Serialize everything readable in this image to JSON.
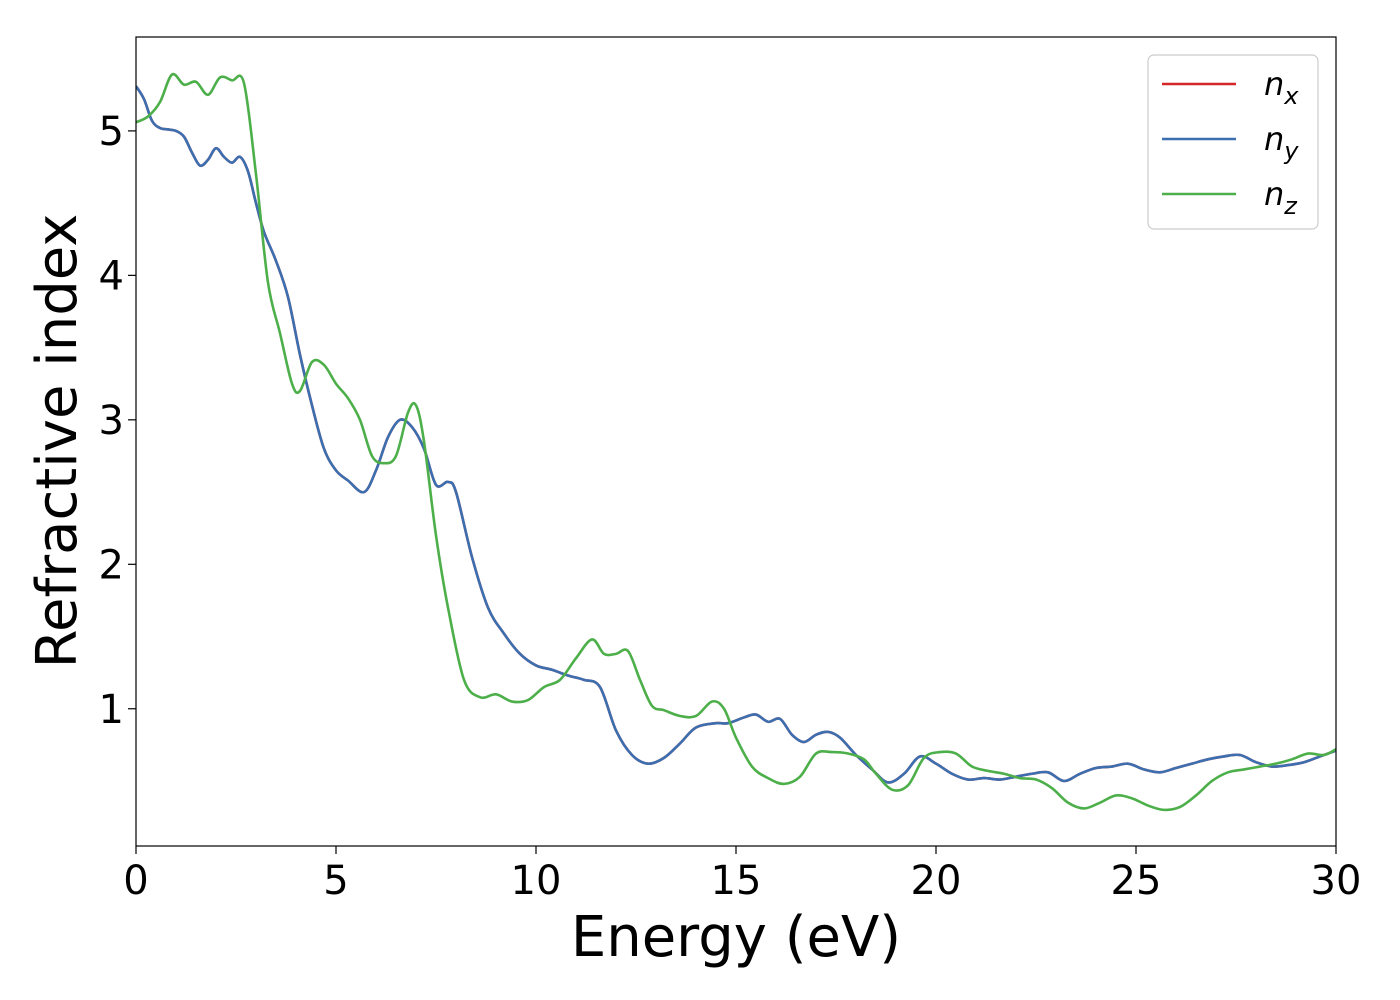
{
  "chart_data": {
    "type": "line",
    "xlabel": "Energy (eV)",
    "ylabel": "Refractive index",
    "xlim": [
      0,
      30
    ],
    "ylim": [
      0.05,
      5.65
    ],
    "xticks": [
      0,
      5,
      10,
      15,
      20,
      25,
      30
    ],
    "yticks": [
      1,
      2,
      3,
      4,
      5
    ],
    "grid": false,
    "legend_position": "top-right",
    "series": [
      {
        "name": "n",
        "subscript": "x",
        "color": "#d62728",
        "x": [
          0,
          0.2,
          0.4,
          0.6,
          0.8,
          1.0,
          1.2,
          1.4,
          1.6,
          1.8,
          2.0,
          2.2,
          2.4,
          2.6,
          2.8,
          3.0,
          3.2,
          3.5,
          3.8,
          4.1,
          4.4,
          4.7,
          5.0,
          5.3,
          5.7,
          6.0,
          6.3,
          6.6,
          6.9,
          7.2,
          7.5,
          7.8,
          8.0,
          8.4,
          8.8,
          9.2,
          9.6,
          10.0,
          10.4,
          10.8,
          11.2,
          11.6,
          12.0,
          12.4,
          12.8,
          13.2,
          13.6,
          14.0,
          14.5,
          14.8,
          15.2,
          15.5,
          15.8,
          16.1,
          16.4,
          16.7,
          17.0,
          17.3,
          17.6,
          18.0,
          18.4,
          18.8,
          19.2,
          19.6,
          20.0,
          20.4,
          20.8,
          21.2,
          21.6,
          22.0,
          22.4,
          22.8,
          23.2,
          23.6,
          24.0,
          24.4,
          24.8,
          25.2,
          25.6,
          26.0,
          26.4,
          26.8,
          27.2,
          27.6,
          28.0,
          28.4,
          28.8,
          29.2,
          29.6,
          30.0
        ],
        "values": [
          5.31,
          5.22,
          5.07,
          5.02,
          5.01,
          5.0,
          4.96,
          4.85,
          4.76,
          4.8,
          4.88,
          4.82,
          4.78,
          4.82,
          4.72,
          4.5,
          4.3,
          4.1,
          3.85,
          3.45,
          3.1,
          2.8,
          2.65,
          2.58,
          2.5,
          2.65,
          2.88,
          3.0,
          2.95,
          2.8,
          2.55,
          2.57,
          2.5,
          2.05,
          1.7,
          1.52,
          1.38,
          1.3,
          1.27,
          1.23,
          1.2,
          1.15,
          0.85,
          0.68,
          0.62,
          0.66,
          0.76,
          0.87,
          0.9,
          0.9,
          0.94,
          0.96,
          0.91,
          0.93,
          0.82,
          0.77,
          0.82,
          0.84,
          0.8,
          0.68,
          0.58,
          0.49,
          0.55,
          0.67,
          0.62,
          0.55,
          0.51,
          0.52,
          0.51,
          0.53,
          0.55,
          0.56,
          0.5,
          0.55,
          0.59,
          0.6,
          0.62,
          0.58,
          0.56,
          0.59,
          0.62,
          0.65,
          0.67,
          0.68,
          0.63,
          0.6,
          0.61,
          0.63,
          0.67,
          0.71
        ]
      },
      {
        "name": "n",
        "subscript": "y",
        "color": "#3b6fb0",
        "x": [
          0,
          0.2,
          0.4,
          0.6,
          0.8,
          1.0,
          1.2,
          1.4,
          1.6,
          1.8,
          2.0,
          2.2,
          2.4,
          2.6,
          2.8,
          3.0,
          3.2,
          3.5,
          3.8,
          4.1,
          4.4,
          4.7,
          5.0,
          5.3,
          5.7,
          6.0,
          6.3,
          6.6,
          6.9,
          7.2,
          7.5,
          7.8,
          8.0,
          8.4,
          8.8,
          9.2,
          9.6,
          10.0,
          10.4,
          10.8,
          11.2,
          11.6,
          12.0,
          12.4,
          12.8,
          13.2,
          13.6,
          14.0,
          14.5,
          14.8,
          15.2,
          15.5,
          15.8,
          16.1,
          16.4,
          16.7,
          17.0,
          17.3,
          17.6,
          18.0,
          18.4,
          18.8,
          19.2,
          19.6,
          20.0,
          20.4,
          20.8,
          21.2,
          21.6,
          22.0,
          22.4,
          22.8,
          23.2,
          23.6,
          24.0,
          24.4,
          24.8,
          25.2,
          25.6,
          26.0,
          26.4,
          26.8,
          27.2,
          27.6,
          28.0,
          28.4,
          28.8,
          29.2,
          29.6,
          30.0
        ],
        "values": [
          5.31,
          5.22,
          5.07,
          5.02,
          5.01,
          5.0,
          4.96,
          4.85,
          4.76,
          4.8,
          4.88,
          4.82,
          4.78,
          4.82,
          4.72,
          4.5,
          4.3,
          4.1,
          3.85,
          3.45,
          3.1,
          2.8,
          2.65,
          2.58,
          2.5,
          2.65,
          2.88,
          3.0,
          2.95,
          2.8,
          2.55,
          2.57,
          2.5,
          2.05,
          1.7,
          1.52,
          1.38,
          1.3,
          1.27,
          1.23,
          1.2,
          1.15,
          0.85,
          0.68,
          0.62,
          0.66,
          0.76,
          0.87,
          0.9,
          0.9,
          0.94,
          0.96,
          0.91,
          0.93,
          0.82,
          0.77,
          0.82,
          0.84,
          0.8,
          0.68,
          0.58,
          0.49,
          0.55,
          0.67,
          0.62,
          0.55,
          0.51,
          0.52,
          0.51,
          0.53,
          0.55,
          0.56,
          0.5,
          0.55,
          0.59,
          0.6,
          0.62,
          0.58,
          0.56,
          0.59,
          0.62,
          0.65,
          0.67,
          0.68,
          0.63,
          0.6,
          0.61,
          0.63,
          0.67,
          0.71
        ]
      },
      {
        "name": "n",
        "subscript": "z",
        "color": "#4daf4a",
        "x": [
          0,
          0.3,
          0.6,
          0.9,
          1.2,
          1.5,
          1.8,
          2.1,
          2.4,
          2.7,
          3.0,
          3.3,
          3.6,
          3.9,
          4.1,
          4.4,
          4.7,
          5.0,
          5.3,
          5.6,
          5.9,
          6.2,
          6.5,
          6.8,
          7.0,
          7.2,
          7.5,
          7.8,
          8.2,
          8.6,
          9.0,
          9.4,
          9.8,
          10.2,
          10.6,
          11.0,
          11.4,
          11.7,
          12.0,
          12.3,
          12.6,
          12.9,
          13.2,
          13.6,
          14.0,
          14.4,
          14.7,
          15.0,
          15.4,
          15.8,
          16.2,
          16.6,
          17.0,
          17.4,
          17.8,
          18.2,
          18.5,
          18.9,
          19.3,
          19.7,
          20.1,
          20.5,
          20.9,
          21.3,
          21.7,
          22.1,
          22.5,
          22.9,
          23.3,
          23.7,
          24.1,
          24.5,
          24.9,
          25.3,
          25.7,
          26.1,
          26.5,
          26.9,
          27.3,
          27.7,
          28.1,
          28.5,
          28.9,
          29.3,
          29.7,
          30.0
        ],
        "values": [
          5.06,
          5.1,
          5.2,
          5.39,
          5.32,
          5.34,
          5.25,
          5.37,
          5.35,
          5.33,
          4.7,
          3.95,
          3.6,
          3.25,
          3.2,
          3.4,
          3.38,
          3.25,
          3.15,
          3.0,
          2.75,
          2.7,
          2.75,
          3.05,
          3.1,
          2.85,
          2.2,
          1.7,
          1.2,
          1.08,
          1.1,
          1.05,
          1.06,
          1.15,
          1.2,
          1.35,
          1.48,
          1.38,
          1.38,
          1.4,
          1.2,
          1.02,
          0.99,
          0.95,
          0.95,
          1.05,
          1.0,
          0.8,
          0.6,
          0.52,
          0.48,
          0.53,
          0.69,
          0.7,
          0.69,
          0.65,
          0.55,
          0.44,
          0.47,
          0.66,
          0.7,
          0.69,
          0.6,
          0.57,
          0.55,
          0.52,
          0.51,
          0.45,
          0.35,
          0.31,
          0.35,
          0.4,
          0.38,
          0.33,
          0.3,
          0.32,
          0.4,
          0.5,
          0.56,
          0.58,
          0.6,
          0.62,
          0.65,
          0.69,
          0.68,
          0.72
        ]
      }
    ]
  }
}
